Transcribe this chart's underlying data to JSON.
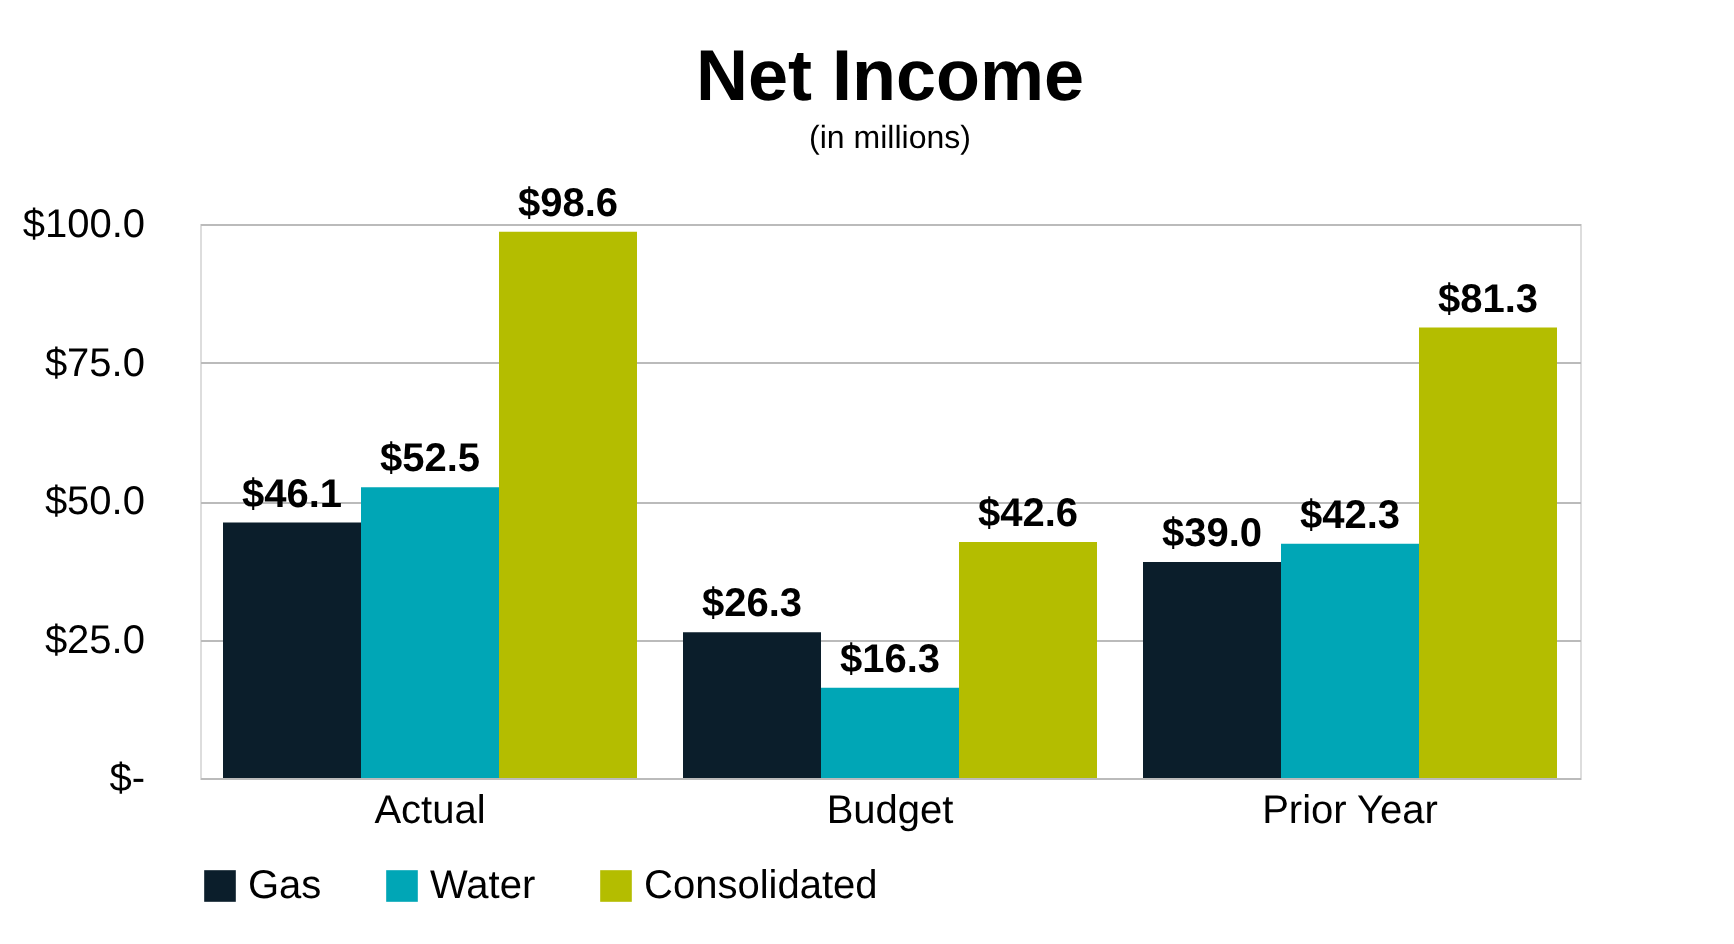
{
  "chart_data": {
    "type": "bar",
    "title": "Net Income",
    "subtitle": "(in millions)",
    "categories": [
      "Actual",
      "Budget",
      "Prior Year"
    ],
    "series": [
      {
        "name": "Gas",
        "color": "#0b1e2b",
        "values": [
          46.1,
          26.3,
          39.0
        ],
        "value_labels": [
          "$46.1",
          "$26.3",
          "$39.0"
        ]
      },
      {
        "name": "Water",
        "color": "#00a6b6",
        "values": [
          52.5,
          16.3,
          42.3
        ],
        "value_labels": [
          "$52.5",
          "$16.3",
          "$42.3"
        ]
      },
      {
        "name": "Consolidated",
        "color": "#b4bd00",
        "values": [
          98.6,
          42.6,
          81.3
        ],
        "value_labels": [
          "$98.6",
          "$42.6",
          "$81.3"
        ]
      }
    ],
    "ylim": [
      0,
      100
    ],
    "yticks": [
      {
        "value": 0,
        "label": "$-"
      },
      {
        "value": 25,
        "label": "$25.0"
      },
      {
        "value": 50,
        "label": "$50.0"
      },
      {
        "value": 75,
        "label": "$75.0"
      },
      {
        "value": 100,
        "label": "$100.0"
      }
    ],
    "grid": "y",
    "legend": "bottom"
  }
}
